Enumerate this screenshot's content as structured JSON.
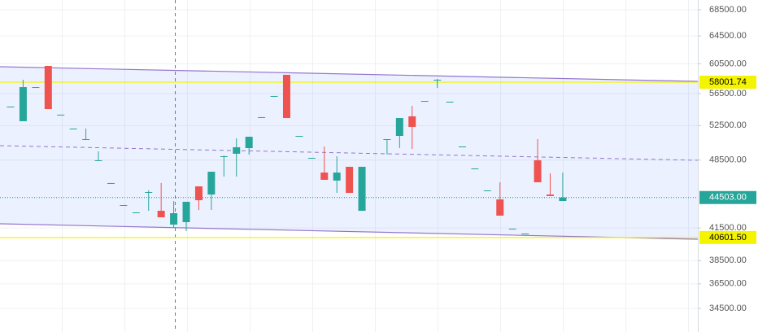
{
  "chart_data": {
    "type": "candlestick",
    "log_scale": true,
    "grid": true,
    "up_color": "#26a69a",
    "down_color": "#ef5350",
    "categories": [
      null,
      null,
      null,
      null,
      null,
      null,
      null,
      null,
      null,
      null,
      null,
      null,
      null,
      null,
      null,
      null,
      null,
      null,
      null,
      null,
      null,
      null,
      null,
      null,
      null,
      null,
      null,
      null,
      null,
      null,
      null,
      null,
      null,
      null,
      null,
      null,
      null,
      null,
      null,
      null,
      null,
      null,
      null,
      null,
      null
    ],
    "open": [
      54840,
      53030,
      57350,
      60210,
      53830,
      52140,
      50890,
      48480,
      46010,
      43740,
      43010,
      45070,
      43170,
      41820,
      42060,
      45660,
      44810,
      48930,
      49210,
      49850,
      53530,
      56190,
      58990,
      51270,
      48750,
      47130,
      46270,
      47760,
      43170,
      null,
      50890,
      51270,
      53630,
      55560,
      58330,
      55460,
      50040,
      47580,
      45240,
      44310,
      41430,
      40970,
      48480,
      44810,
      44150
    ],
    "high": [
      54840,
      58330,
      57350,
      60210,
      53830,
      52140,
      52140,
      49490,
      46010,
      43740,
      43010,
      45240,
      46010,
      44150,
      44070,
      45660,
      47220,
      49020,
      50990,
      51170,
      53530,
      56190,
      58990,
      51270,
      48750,
      50040,
      48930,
      47760,
      47760,
      null,
      50890,
      53420,
      54940,
      55560,
      58440,
      55460,
      50040,
      47580,
      45240,
      46090,
      41430,
      40970,
      50890,
      47050,
      47130
    ],
    "low": [
      54840,
      53030,
      57350,
      54530,
      53830,
      52140,
      50890,
      48390,
      46010,
      43740,
      43010,
      43170,
      42530,
      41510,
      41200,
      43250,
      43250,
      46700,
      46700,
      49120,
      53530,
      56190,
      53420,
      51270,
      48750,
      46350,
      44980,
      44980,
      43170,
      null,
      49120,
      49850,
      49760,
      55560,
      57250,
      55460,
      50040,
      47580,
      45240,
      42690,
      41430,
      40970,
      46090,
      44650,
      44150
    ],
    "close": [
      54840,
      57350,
      57350,
      54530,
      53830,
      52140,
      50890,
      48480,
      46010,
      43740,
      43010,
      45070,
      42530,
      42930,
      44070,
      44230,
      47220,
      48930,
      49950,
      51170,
      53530,
      56190,
      53420,
      51270,
      48750,
      46350,
      47130,
      44980,
      47760,
      null,
      50890,
      53420,
      52340,
      55560,
      58330,
      55460,
      50040,
      47580,
      45240,
      42690,
      41430,
      40970,
      46090,
      44650,
      44503
    ],
    "ylim": [
      32680,
      70050
    ],
    "yticks": [
      {
        "value": 68500,
        "label": "68500.00"
      },
      {
        "value": 64500,
        "label": "64500.00"
      },
      {
        "value": 60500,
        "label": "60500.00"
      },
      {
        "value": 56500,
        "label": "56500.00"
      },
      {
        "value": 52500,
        "label": "52500.00"
      },
      {
        "value": 48500,
        "label": "48500.00"
      },
      {
        "value": 41500,
        "label": "41500.00"
      },
      {
        "value": 38500,
        "label": "38500.00"
      },
      {
        "value": 36500,
        "label": "36500.00"
      },
      {
        "value": 34500,
        "label": "34500.00"
      }
    ],
    "price_lines": [
      {
        "value": 58001.74,
        "label": "58001.74",
        "color": "#f4f400",
        "text_color": "#000000",
        "style": "solid"
      },
      {
        "value": 44503,
        "label": "44503.00",
        "color": "#26a69a",
        "text_color": "#ffffff",
        "style": "dotted"
      },
      {
        "value": 40601.5,
        "label": "40601.50",
        "color": "#f4f400",
        "text_color": "#000000",
        "style": "solid"
      }
    ]
  }
}
